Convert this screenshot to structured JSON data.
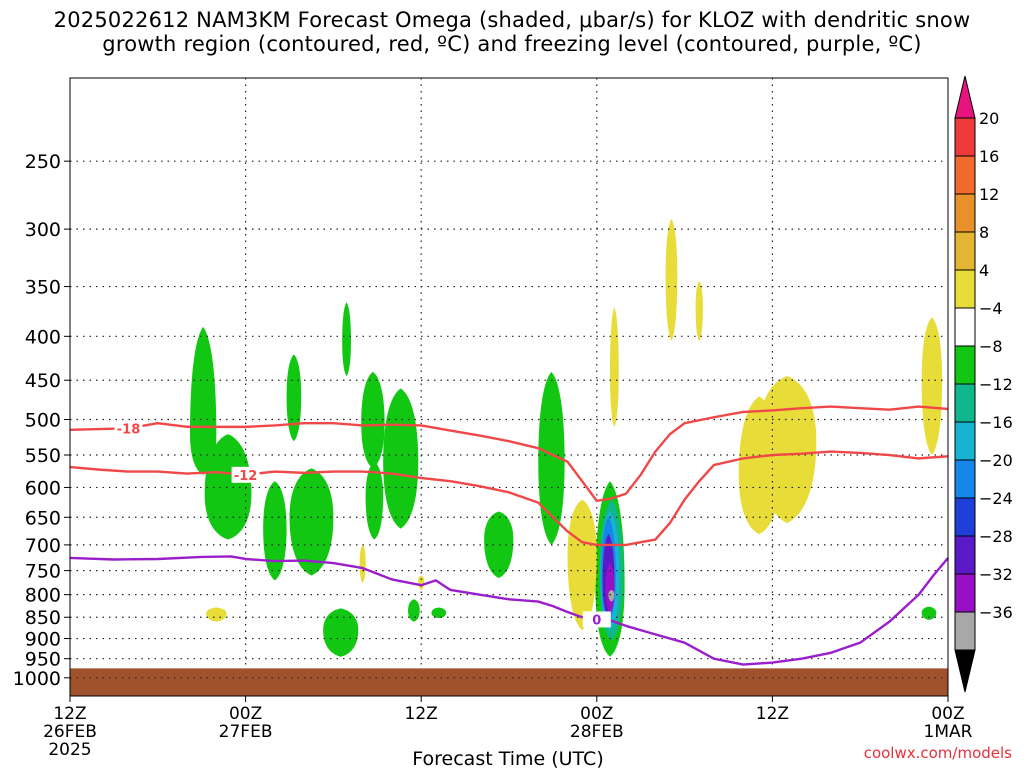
{
  "title": {
    "line1": "2025022612 NAM3KM Forecast Omega (shaded, μbar/s) for KLOZ with dendritic snow",
    "line2": "growth region (contoured, red, ºC) and freezing level (contoured, purple, ºC)"
  },
  "credit": "coolwx.com/models",
  "chart_data": {
    "type": "time-height contour",
    "xlabel": "Forecast Time (UTC)",
    "ylabel": "",
    "y_scale": "pressure (hPa), inverted, logarithmic",
    "ylim": [
      1050,
      200
    ],
    "grid": true,
    "x_ticks": [
      {
        "hour": 0,
        "lines": [
          "12Z",
          "26FEB",
          "2025"
        ]
      },
      {
        "hour": 12,
        "lines": [
          "00Z",
          "27FEB"
        ]
      },
      {
        "hour": 24,
        "lines": [
          "12Z"
        ]
      },
      {
        "hour": 36,
        "lines": [
          "00Z",
          "28FEB"
        ]
      },
      {
        "hour": 48,
        "lines": [
          "12Z"
        ]
      },
      {
        "hour": 60,
        "lines": [
          "00Z",
          "1MAR"
        ]
      }
    ],
    "y_ticks": [
      250,
      300,
      350,
      400,
      450,
      500,
      550,
      600,
      650,
      700,
      750,
      800,
      850,
      900,
      950,
      1000
    ],
    "colorbar": {
      "labels": [
        "20",
        "16",
        "12",
        "8",
        "4",
        "−4",
        "−8",
        "−12",
        "−16",
        "−20",
        "−24",
        "−28",
        "−32",
        "−36"
      ],
      "colors": [
        "#e8147e",
        "#ec3a3a",
        "#ef6a2c",
        "#e8902a",
        "#e3b532",
        "#e7dc38",
        "#ffffff",
        "#12c712",
        "#10b68d",
        "#16b3d3",
        "#1687e8",
        "#1f40d8",
        "#5a1ac8",
        "#9810c6",
        "#a8a8a8",
        "#000000"
      ]
    },
    "ground_fill": {
      "color": "#a0522d"
    },
    "contours": [
      {
        "name": "-18",
        "color": "#f04848",
        "label_hour": 4.1,
        "points": [
          [
            0,
            514
          ],
          [
            2,
            513
          ],
          [
            4,
            512
          ],
          [
            6,
            505
          ],
          [
            8,
            510
          ],
          [
            10,
            510
          ],
          [
            12,
            510
          ],
          [
            14,
            508
          ],
          [
            16,
            505
          ],
          [
            18,
            505
          ],
          [
            20,
            508
          ],
          [
            22,
            507
          ],
          [
            24,
            508
          ],
          [
            26,
            515
          ],
          [
            28,
            522
          ],
          [
            30,
            530
          ],
          [
            32,
            540
          ],
          [
            34,
            560
          ],
          [
            35,
            590
          ],
          [
            36,
            622
          ],
          [
            37,
            618
          ],
          [
            38,
            610
          ],
          [
            39,
            580
          ],
          [
            40,
            545
          ],
          [
            41,
            520
          ],
          [
            42,
            505
          ],
          [
            44,
            497
          ],
          [
            46,
            490
          ],
          [
            48,
            488
          ],
          [
            50,
            485
          ],
          [
            52,
            483
          ],
          [
            54,
            485
          ],
          [
            56,
            487
          ],
          [
            58,
            483
          ],
          [
            60,
            486
          ]
        ]
      },
      {
        "name": "-12",
        "color": "#f04848",
        "label_hour": 12.5,
        "points": [
          [
            0,
            568
          ],
          [
            2,
            572
          ],
          [
            4,
            575
          ],
          [
            6,
            575
          ],
          [
            8,
            578
          ],
          [
            10,
            576
          ],
          [
            12,
            580
          ],
          [
            14,
            575
          ],
          [
            16,
            577
          ],
          [
            18,
            575
          ],
          [
            20,
            575
          ],
          [
            22,
            578
          ],
          [
            24,
            585
          ],
          [
            26,
            590
          ],
          [
            28,
            598
          ],
          [
            30,
            608
          ],
          [
            32,
            625
          ],
          [
            33,
            650
          ],
          [
            34,
            675
          ],
          [
            35,
            695
          ],
          [
            36,
            700
          ],
          [
            38,
            700
          ],
          [
            40,
            690
          ],
          [
            41,
            660
          ],
          [
            42,
            620
          ],
          [
            43,
            590
          ],
          [
            44,
            565
          ],
          [
            46,
            555
          ],
          [
            48,
            550
          ],
          [
            50,
            548
          ],
          [
            52,
            545
          ],
          [
            54,
            547
          ],
          [
            56,
            550
          ],
          [
            58,
            555
          ],
          [
            60,
            552
          ]
        ]
      },
      {
        "name": "0",
        "color": "#9b1ecb",
        "label_hour": 35.8,
        "points": [
          [
            0,
            725
          ],
          [
            3,
            728
          ],
          [
            6,
            727
          ],
          [
            9,
            723
          ],
          [
            11,
            722
          ],
          [
            12,
            727
          ],
          [
            14,
            731
          ],
          [
            16,
            730
          ],
          [
            18,
            735
          ],
          [
            20,
            745
          ],
          [
            22,
            768
          ],
          [
            24,
            780
          ],
          [
            25,
            770
          ],
          [
            26,
            790
          ],
          [
            28,
            800
          ],
          [
            30,
            810
          ],
          [
            32,
            815
          ],
          [
            33,
            825
          ],
          [
            34,
            838
          ],
          [
            35,
            850
          ],
          [
            36,
            855
          ],
          [
            37,
            858
          ],
          [
            38,
            870
          ],
          [
            40,
            890
          ],
          [
            42,
            910
          ],
          [
            44,
            950
          ],
          [
            46,
            965
          ],
          [
            48,
            960
          ],
          [
            50,
            950
          ],
          [
            52,
            935
          ],
          [
            54,
            910
          ],
          [
            56,
            860
          ],
          [
            58,
            800
          ],
          [
            59,
            760
          ],
          [
            60,
            725
          ]
        ]
      }
    ],
    "omega_regions": [
      {
        "value": -6,
        "color": "#12c712",
        "center_hour": 9.1,
        "center_p": 520,
        "hours_half": 0.9,
        "p_top": 390,
        "p_bot": 580
      },
      {
        "value": -6,
        "color": "#12c712",
        "center_hour": 10.8,
        "center_p": 610,
        "hours_half": 1.6,
        "p_top": 520,
        "p_bot": 690
      },
      {
        "value": -6,
        "color": "#12c712",
        "center_hour": 15.3,
        "center_p": 470,
        "hours_half": 0.5,
        "p_top": 420,
        "p_bot": 530
      },
      {
        "value": -6,
        "color": "#12c712",
        "center_hour": 16.5,
        "center_p": 650,
        "hours_half": 1.5,
        "p_top": 570,
        "p_bot": 760
      },
      {
        "value": -6,
        "color": "#12c712",
        "center_hour": 14.0,
        "center_p": 670,
        "hours_half": 0.8,
        "p_top": 590,
        "p_bot": 770
      },
      {
        "value": -6,
        "color": "#12c712",
        "center_hour": 18.9,
        "center_p": 405,
        "hours_half": 0.3,
        "p_top": 365,
        "p_bot": 445
      },
      {
        "value": -6,
        "color": "#12c712",
        "center_hour": 20.7,
        "center_p": 505,
        "hours_half": 0.8,
        "p_top": 440,
        "p_bot": 570
      },
      {
        "value": -6,
        "color": "#12c712",
        "center_hour": 22.6,
        "center_p": 560,
        "hours_half": 1.2,
        "p_top": 460,
        "p_bot": 670
      },
      {
        "value": -6,
        "color": "#12c712",
        "center_hour": 18.5,
        "center_p": 880,
        "hours_half": 1.2,
        "p_top": 830,
        "p_bot": 945
      },
      {
        "value": -6,
        "color": "#12c712",
        "center_hour": 20.8,
        "center_p": 615,
        "hours_half": 0.6,
        "p_top": 560,
        "p_bot": 690
      },
      {
        "value": -6,
        "color": "#12c712",
        "center_hour": 23.5,
        "center_p": 835,
        "hours_half": 0.4,
        "p_top": 810,
        "p_bot": 860
      },
      {
        "value": -6,
        "color": "#12c712",
        "center_hour": 25.2,
        "center_p": 840,
        "hours_half": 0.5,
        "p_top": 828,
        "p_bot": 852
      },
      {
        "value": -6,
        "color": "#12c712",
        "center_hour": 29.3,
        "center_p": 690,
        "hours_half": 1.0,
        "p_top": 640,
        "p_bot": 765
      },
      {
        "value": -6,
        "color": "#12c712",
        "center_hour": 32.9,
        "center_p": 560,
        "hours_half": 0.9,
        "p_top": 440,
        "p_bot": 700
      },
      {
        "value": -6,
        "color": "#12c712",
        "center_hour": 36.9,
        "center_p": 780,
        "hours_half": 1.0,
        "p_top": 590,
        "p_bot": 945
      },
      {
        "value": -6,
        "color": "#12c712",
        "center_hour": 58.7,
        "center_p": 840,
        "hours_half": 0.5,
        "p_top": 826,
        "p_bot": 856
      },
      {
        "value": 6,
        "color": "#e7dc38",
        "center_hour": 35.0,
        "center_p": 720,
        "hours_half": 1.0,
        "p_top": 620,
        "p_bot": 880
      },
      {
        "value": 6,
        "color": "#e7dc38",
        "center_hour": 37.2,
        "center_p": 440,
        "hours_half": 0.3,
        "p_top": 370,
        "p_bot": 510
      },
      {
        "value": 6,
        "color": "#e7dc38",
        "center_hour": 41.1,
        "center_p": 340,
        "hours_half": 0.4,
        "p_top": 292,
        "p_bot": 405
      },
      {
        "value": 6,
        "color": "#e7dc38",
        "center_hour": 43.0,
        "center_p": 370,
        "hours_half": 0.25,
        "p_top": 345,
        "p_bot": 405
      },
      {
        "value": 6,
        "color": "#e7dc38",
        "center_hour": 47.1,
        "center_p": 580,
        "hours_half": 1.4,
        "p_top": 470,
        "p_bot": 680
      },
      {
        "value": 6,
        "color": "#e7dc38",
        "center_hour": 49.0,
        "center_p": 530,
        "hours_half": 2.0,
        "p_top": 445,
        "p_bot": 660
      },
      {
        "value": 6,
        "color": "#e7dc38",
        "center_hour": 58.9,
        "center_p": 450,
        "hours_half": 0.7,
        "p_top": 380,
        "p_bot": 550
      },
      {
        "value": 6,
        "color": "#e7dc38",
        "center_hour": 10.0,
        "center_p": 842,
        "hours_half": 0.7,
        "p_top": 828,
        "p_bot": 860
      },
      {
        "value": 6,
        "color": "#e7dc38",
        "center_hour": 20.0,
        "center_p": 735,
        "hours_half": 0.2,
        "p_top": 700,
        "p_bot": 775
      },
      {
        "value": 6,
        "color": "#e7dc38",
        "center_hour": 24.0,
        "center_p": 770,
        "hours_half": 0.15,
        "p_top": 760,
        "p_bot": 790
      },
      {
        "value": -14,
        "color": "#10b68d",
        "center_hour": 37.0,
        "center_p": 760,
        "hours_half": 0.8,
        "p_top": 620,
        "p_bot": 905
      },
      {
        "value": -18,
        "color": "#16b3d3",
        "center_hour": 36.9,
        "center_p": 760,
        "hours_half": 0.65,
        "p_top": 640,
        "p_bot": 880
      },
      {
        "value": -22,
        "color": "#1687e8",
        "center_hour": 36.8,
        "center_p": 760,
        "hours_half": 0.5,
        "p_top": 650,
        "p_bot": 860
      },
      {
        "value": -26,
        "color": "#5a1ac8",
        "center_hour": 36.8,
        "center_p": 770,
        "hours_half": 0.4,
        "p_top": 680,
        "p_bot": 850
      },
      {
        "value": -30,
        "color": "#9810c6",
        "center_hour": 36.9,
        "center_p": 790,
        "hours_half": 0.3,
        "p_top": 735,
        "p_bot": 840
      },
      {
        "value": -34,
        "color": "#a8a8a8",
        "center_hour": 37.0,
        "center_p": 800,
        "hours_half": 0.06,
        "p_top": 790,
        "p_bot": 815
      }
    ]
  }
}
